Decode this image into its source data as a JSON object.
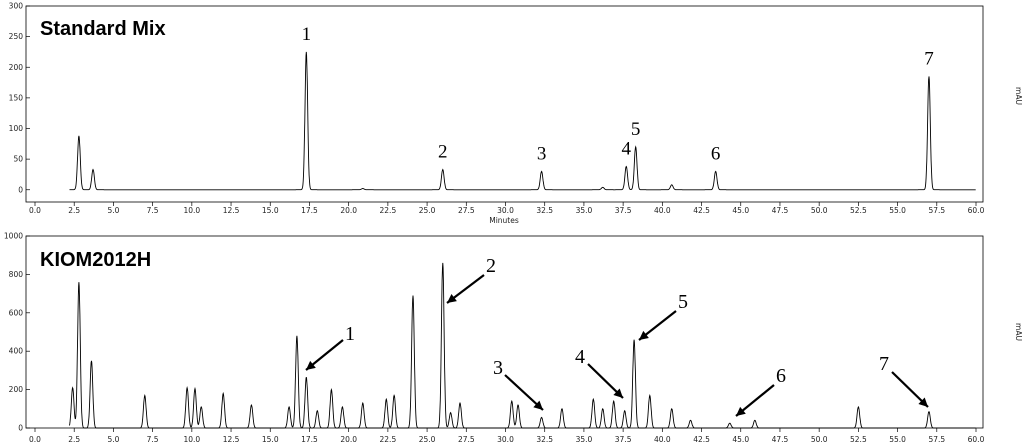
{
  "chart_data": [
    {
      "type": "line",
      "title": "Standard Mix",
      "xlabel": "Minutes",
      "ylabel": "mAU",
      "xlim": [
        0,
        60
      ],
      "ylim": [
        -20,
        300
      ],
      "xticks": [
        0,
        2.5,
        5,
        7.5,
        10,
        12.5,
        15,
        17.5,
        20,
        22.5,
        25,
        27.5,
        30,
        32.5,
        35,
        37.5,
        40,
        42.5,
        45,
        47.5,
        50,
        52.5,
        55,
        57.5,
        60
      ],
      "yticks": [
        0,
        50,
        100,
        150,
        200,
        250,
        300
      ],
      "grid": false,
      "peaks": [
        {
          "x": 2.8,
          "y": 88,
          "label": ""
        },
        {
          "x": 3.7,
          "y": 33,
          "label": ""
        },
        {
          "x": 17.3,
          "y": 225,
          "label": "1"
        },
        {
          "x": 20.9,
          "y": 2,
          "label": ""
        },
        {
          "x": 26.0,
          "y": 33,
          "label": "2"
        },
        {
          "x": 32.3,
          "y": 30,
          "label": "3"
        },
        {
          "x": 36.2,
          "y": 4,
          "label": ""
        },
        {
          "x": 37.7,
          "y": 38,
          "label": "4"
        },
        {
          "x": 38.3,
          "y": 70,
          "label": "5"
        },
        {
          "x": 40.6,
          "y": 8,
          "label": ""
        },
        {
          "x": 43.4,
          "y": 30,
          "label": "6"
        },
        {
          "x": 57.0,
          "y": 185,
          "label": "7"
        }
      ]
    },
    {
      "type": "line",
      "title": "KIOM2012H",
      "xlabel": "",
      "ylabel": "mAU",
      "xlim": [
        0,
        60
      ],
      "ylim": [
        0,
        1000
      ],
      "xticks": [
        0,
        2.5,
        5,
        7.5,
        10,
        12.5,
        15,
        17.5,
        20,
        22.5,
        25,
        27.5,
        30,
        32.5,
        35,
        37.5,
        40,
        42.5,
        45,
        47.5,
        50,
        52.5,
        55,
        57.5,
        60
      ],
      "yticks": [
        0,
        200,
        400,
        600,
        800,
        1000
      ],
      "grid": false,
      "peaks": [
        {
          "x": 2.4,
          "y": 210,
          "label": ""
        },
        {
          "x": 2.8,
          "y": 760,
          "label": ""
        },
        {
          "x": 3.6,
          "y": 350,
          "label": ""
        },
        {
          "x": 7.0,
          "y": 170,
          "label": ""
        },
        {
          "x": 9.7,
          "y": 210,
          "label": ""
        },
        {
          "x": 10.2,
          "y": 205,
          "label": ""
        },
        {
          "x": 10.6,
          "y": 110,
          "label": ""
        },
        {
          "x": 12.0,
          "y": 180,
          "label": ""
        },
        {
          "x": 13.8,
          "y": 120,
          "label": ""
        },
        {
          "x": 16.2,
          "y": 110,
          "label": ""
        },
        {
          "x": 16.7,
          "y": 480,
          "label": ""
        },
        {
          "x": 17.3,
          "y": 265,
          "label": "1"
        },
        {
          "x": 18.0,
          "y": 90,
          "label": ""
        },
        {
          "x": 18.9,
          "y": 200,
          "label": ""
        },
        {
          "x": 19.6,
          "y": 110,
          "label": ""
        },
        {
          "x": 20.9,
          "y": 130,
          "label": ""
        },
        {
          "x": 22.4,
          "y": 150,
          "label": ""
        },
        {
          "x": 22.9,
          "y": 170,
          "label": ""
        },
        {
          "x": 24.1,
          "y": 690,
          "label": ""
        },
        {
          "x": 26.0,
          "y": 860,
          "label": "2"
        },
        {
          "x": 26.5,
          "y": 80,
          "label": ""
        },
        {
          "x": 27.1,
          "y": 130,
          "label": ""
        },
        {
          "x": 30.4,
          "y": 140,
          "label": ""
        },
        {
          "x": 30.8,
          "y": 120,
          "label": ""
        },
        {
          "x": 32.3,
          "y": 55,
          "label": "3"
        },
        {
          "x": 33.6,
          "y": 100,
          "label": ""
        },
        {
          "x": 35.6,
          "y": 150,
          "label": ""
        },
        {
          "x": 36.2,
          "y": 100,
          "label": ""
        },
        {
          "x": 36.9,
          "y": 140,
          "label": ""
        },
        {
          "x": 37.6,
          "y": 90,
          "label": "4"
        },
        {
          "x": 38.2,
          "y": 460,
          "label": "5"
        },
        {
          "x": 39.2,
          "y": 170,
          "label": ""
        },
        {
          "x": 40.6,
          "y": 100,
          "label": ""
        },
        {
          "x": 41.8,
          "y": 40,
          "label": ""
        },
        {
          "x": 44.3,
          "y": 25,
          "label": "6"
        },
        {
          "x": 45.9,
          "y": 40,
          "label": ""
        },
        {
          "x": 52.5,
          "y": 110,
          "label": ""
        },
        {
          "x": 57.0,
          "y": 85,
          "label": "7"
        }
      ]
    }
  ],
  "colors": {
    "trace": "#000000",
    "axis": "#000000"
  }
}
